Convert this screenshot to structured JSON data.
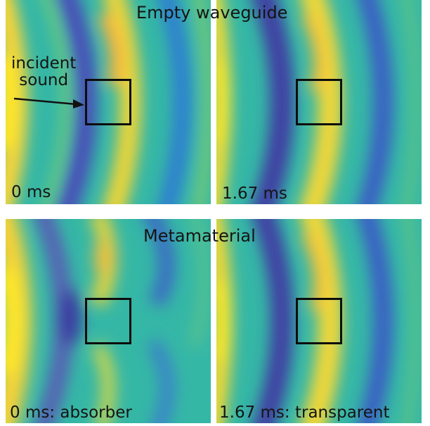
{
  "titles": {
    "top": "Empty waveguide",
    "bottom": "Metamaterial"
  },
  "annotations": {
    "incident_line1": "incident",
    "incident_line2": "sound"
  },
  "panels": [
    {
      "label": "0 ms"
    },
    {
      "label": "1.67 ms"
    },
    {
      "label": "0 ms: absorber"
    },
    {
      "label": "1.67 ms: transparent"
    }
  ],
  "colors": {
    "field_background": "#35b7a6",
    "wave_peak": "#f2e228",
    "wave_trough": "#3f3fa3",
    "box_outline": "#0d0d0d"
  }
}
